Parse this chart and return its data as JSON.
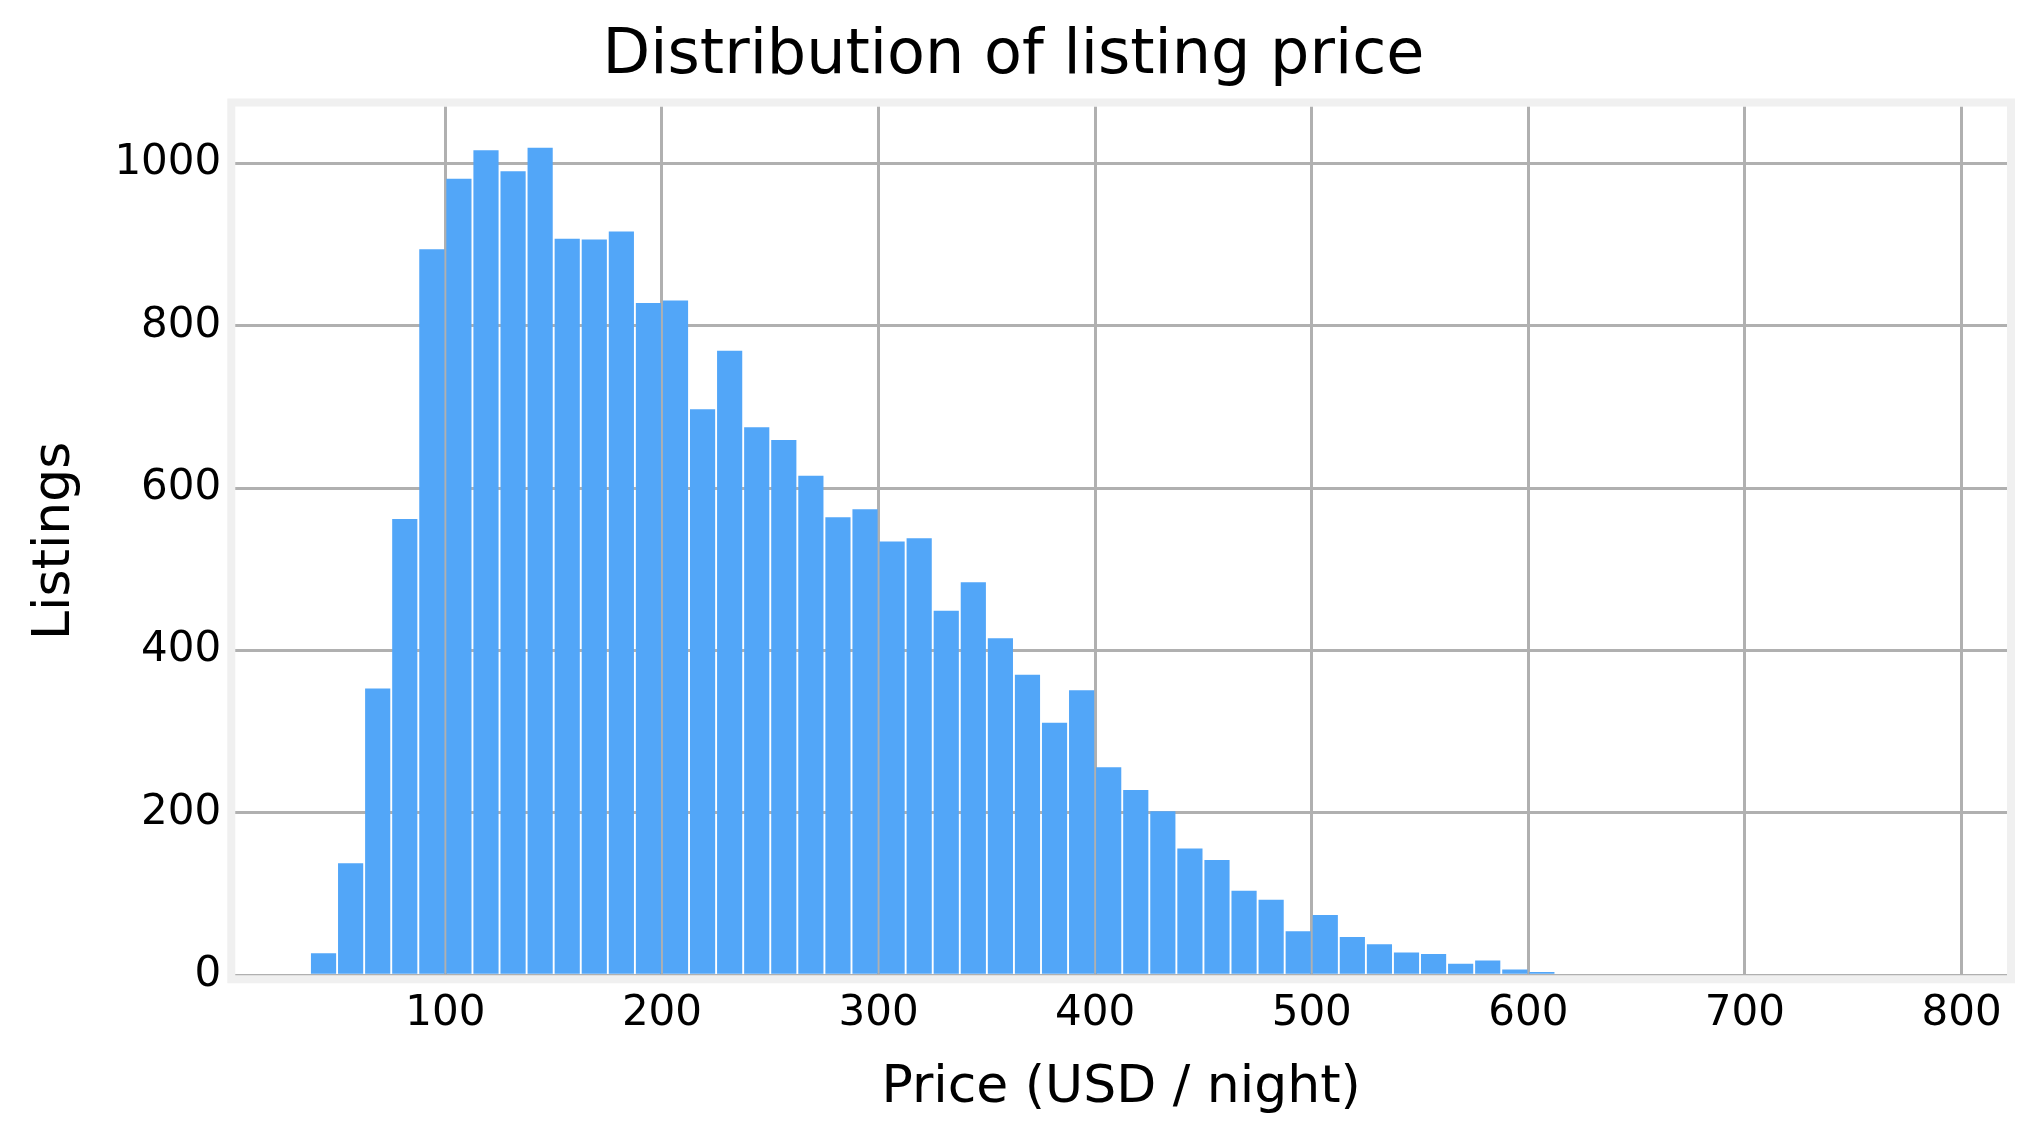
{
  "chart_data": {
    "type": "histogram",
    "title": "Distribution of listing price",
    "xlabel": "Price (USD / night)",
    "ylabel": "Listings",
    "bins": [
      37.5,
      50,
      62.5,
      75,
      87.5,
      100,
      112.5,
      125,
      137.5,
      150,
      162.5,
      175,
      187.5,
      200,
      212.5,
      225,
      237.5,
      250,
      262.5,
      275,
      287.5,
      300,
      312.5,
      325,
      337.5,
      350,
      362.5,
      375,
      387.5,
      400,
      412.5,
      425,
      437.5,
      450,
      462.5,
      475,
      487.5,
      500,
      512.5,
      525,
      537.5,
      550,
      562.5,
      575,
      587.5,
      600,
      612.5
    ],
    "values": [
      27,
      138,
      353,
      562,
      894,
      981,
      1016,
      990,
      1019,
      907,
      906,
      916,
      828,
      831,
      697,
      769,
      675,
      659,
      615,
      564,
      574,
      534,
      538,
      449,
      484,
      415,
      370,
      311,
      351,
      256,
      228,
      202,
      156,
      142,
      104,
      93,
      54,
      74,
      47,
      38,
      28,
      26,
      14,
      18,
      7,
      4
    ],
    "color": "#52a6f8",
    "xlim": [
      3,
      821
    ],
    "ylim": [
      0,
      1070
    ],
    "xticks": [
      100,
      200,
      300,
      400,
      500,
      600,
      700,
      800
    ],
    "yticks": [
      0,
      200,
      400,
      600,
      800,
      1000
    ],
    "grid": true
  }
}
